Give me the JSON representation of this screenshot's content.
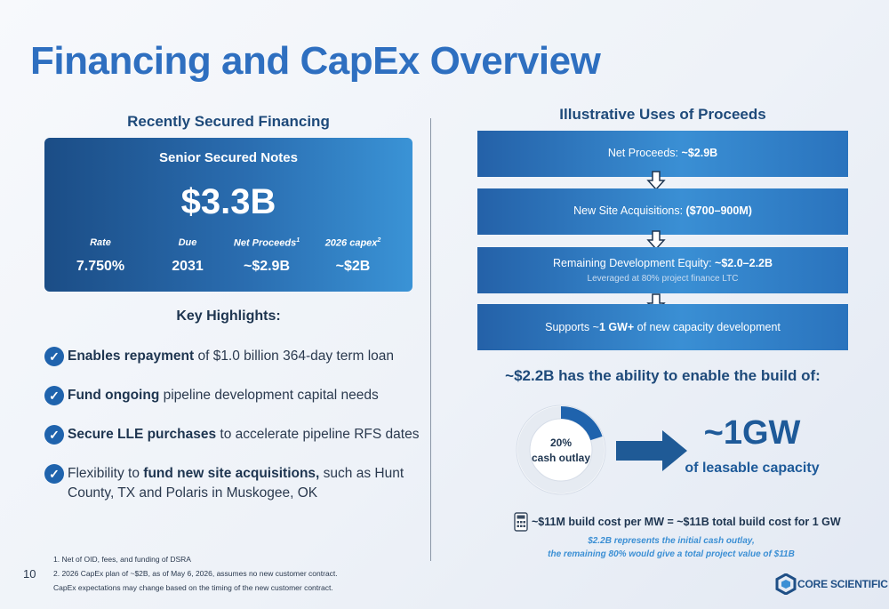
{
  "page_title": "Financing and CapEx Overview",
  "page_number": "10",
  "left": {
    "heading": "Recently Secured Financing",
    "card": {
      "title": "Senior Secured Notes",
      "amount": "$3.3B",
      "metrics": [
        {
          "label": "Rate",
          "sup": "",
          "value": "7.750%"
        },
        {
          "label": "Due",
          "sup": "",
          "value": "2031"
        },
        {
          "label": "Net Proceeds",
          "sup": "1",
          "value": "~$2.9B"
        },
        {
          "label": "2026 capex",
          "sup": "2",
          "value": "~$2B"
        }
      ]
    },
    "highlights_heading": "Key Highlights:",
    "highlights": [
      {
        "bold": "Enables repayment",
        "text": " of $1.0 billion 364-day term loan"
      },
      {
        "bold": "Fund ongoing",
        "text": " pipeline development capital needs"
      },
      {
        "bold": "Secure LLE purchases",
        "text": " to accelerate pipeline RFS dates"
      },
      {
        "pre": "Flexibility to ",
        "bold": "fund new site acquisitions,",
        "text": " such as Hunt County, TX and Polaris in Muskogee, OK"
      }
    ],
    "footnotes": [
      "1. Net of OID, fees, and funding of DSRA",
      "2. 2026 CapEx plan of ~$2B, as of May 6, 2026, assumes no new customer contract.",
      "CapEx expectations may change based on the timing of the new customer contract."
    ]
  },
  "right": {
    "heading": "Illustrative Uses of Proceeds",
    "uses": [
      {
        "pre": "Net Proceeds: ",
        "bold": "~$2.9B",
        "post": "",
        "sub": ""
      },
      {
        "pre": "New Site Acquisitions: ",
        "bold": "($700–900M)",
        "post": "",
        "sub": ""
      },
      {
        "pre": "Remaining Development Equity: ",
        "bold": "~$2.0–2.2B",
        "post": "",
        "sub": "Leveraged at 80% project finance LTC"
      },
      {
        "pre": "Supports ~",
        "bold": "1 GW+",
        "post": " of new capacity development",
        "sub": ""
      }
    ],
    "enable_heading": "~$2.2B has the ability to enable the build of:",
    "donut": {
      "percent_label": "20%",
      "caption": "cash outlay",
      "fraction": 0.2,
      "color": "#1f63ad",
      "track": "#ffffff"
    },
    "capacity_value": "~1GW",
    "capacity_label": "of leasable capacity",
    "build_cost": "~$11M build cost per MW = ~$11B total build cost for 1 GW",
    "notes": [
      "$2.2B represents the initial cash outlay,",
      "the remaining 80% would give a total project value of $11B"
    ]
  },
  "logo_text": "CORE SCIENTIFIC",
  "colors": {
    "accent": "#2e6fc0",
    "dark_blue": "#1e4a7a",
    "highlight_blue": "#3b8fd4"
  }
}
